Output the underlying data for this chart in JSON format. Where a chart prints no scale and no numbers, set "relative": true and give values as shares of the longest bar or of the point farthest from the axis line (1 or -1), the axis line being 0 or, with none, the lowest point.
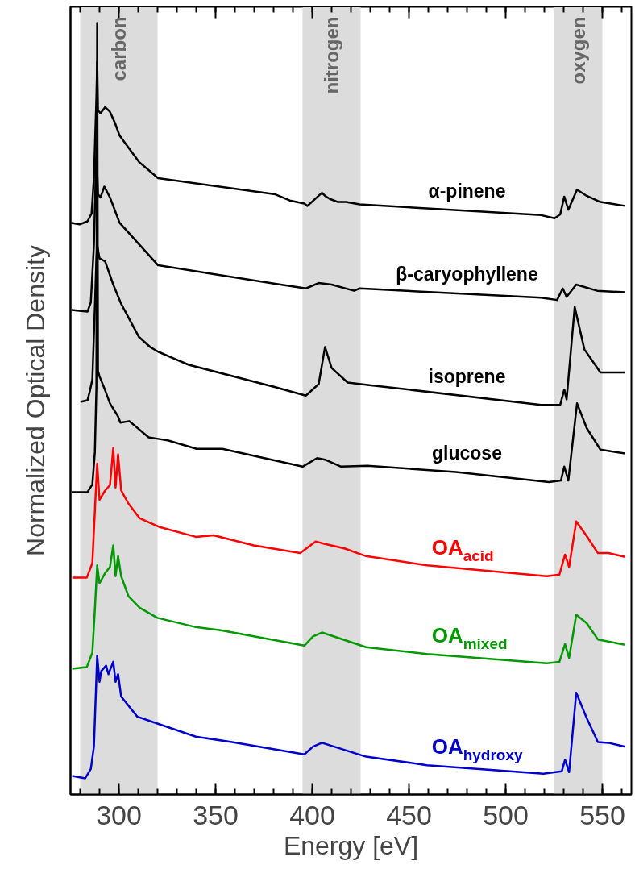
{
  "chart_data": {
    "type": "line",
    "relative": true,
    "xlabel": "Energy [eV]",
    "ylabel": "Normalized Optical Density",
    "xlim": [
      275,
      565
    ],
    "xticks": [
      300,
      350,
      400,
      450,
      500,
      550
    ],
    "grid": false,
    "line_style": "solid",
    "marker": "none",
    "bands": [
      {
        "axis": "x",
        "from": 280,
        "to": 320,
        "label": "carbon",
        "color": "#dcdcdc"
      },
      {
        "axis": "x",
        "from": 395,
        "to": 425,
        "label": "nitrogen",
        "color": "#dcdcdc"
      },
      {
        "axis": "x",
        "from": 525,
        "to": 550,
        "label": "oxygen",
        "color": "#dcdcdc"
      }
    ],
    "series": [
      {
        "name": "α-pinene",
        "color": "#000000",
        "x": [
          275.5,
          279.7,
          283.8,
          285.9,
          287.1,
          288.4,
          288.8,
          289.2,
          290.5,
          292.9,
          295.4,
          297.9,
          300.4,
          310.4,
          320.3,
          380.9,
          388.4,
          395.9,
          397.5,
          405,
          406.6,
          409.1,
          413.3,
          417.4,
          424.5,
          518.3,
          525.3,
          528.2,
          530.3,
          532.4,
          536.9,
          541.9,
          549,
          561.8
        ],
        "values": [
          0.741,
          0.739,
          0.743,
          0.753,
          0.799,
          0.904,
          0.95,
          0.887,
          0.883,
          0.891,
          0.885,
          0.871,
          0.854,
          0.82,
          0.799,
          0.778,
          0.77,
          0.766,
          0.763,
          0.78,
          0.776,
          0.772,
          0.768,
          0.768,
          0.765,
          0.751,
          0.747,
          0.752,
          0.775,
          0.758,
          0.784,
          0.776,
          0.768,
          0.763
        ]
      },
      {
        "name": "β-caryophyllene",
        "color": "#000000",
        "x": [
          275.5,
          283.8,
          285.5,
          287.1,
          288.4,
          289.2,
          290.5,
          292.5,
          295.4,
          300.4,
          320.3,
          380.9,
          396.7,
          403.3,
          410,
          421.6,
          424.5,
          518.3,
          526.6,
          529.5,
          531.5,
          536.5,
          547.3,
          561.8
        ],
        "values": [
          0.628,
          0.626,
          0.638,
          0.712,
          0.837,
          0.778,
          0.774,
          0.788,
          0.774,
          0.741,
          0.686,
          0.662,
          0.656,
          0.663,
          0.661,
          0.653,
          0.656,
          0.644,
          0.641,
          0.656,
          0.645,
          0.661,
          0.653,
          0.651
        ]
      },
      {
        "name": "isoprene",
        "color": "#000000",
        "x": [
          280.1,
          283.8,
          285.1,
          286.3,
          287.6,
          288.4,
          288.8,
          290,
          292.9,
          297.1,
          301.2,
          310.4,
          316.2,
          320.3,
          328.6,
          336.1,
          380.9,
          396.7,
          403.3,
          406.6,
          410,
          418.3,
          428.6,
          518.3,
          528.2,
          530.3,
          531.5,
          535.7,
          540.7,
          549,
          561.8
        ],
        "values": [
          0.509,
          0.511,
          0.524,
          0.538,
          0.632,
          0.695,
          0.712,
          0.695,
          0.691,
          0.661,
          0.636,
          0.593,
          0.58,
          0.574,
          0.565,
          0.557,
          0.528,
          0.517,
          0.532,
          0.58,
          0.553,
          0.534,
          0.531,
          0.505,
          0.505,
          0.525,
          0.512,
          0.632,
          0.577,
          0.547,
          0.547
        ]
      },
      {
        "name": "glucose",
        "color": "#000000",
        "x": [
          275.5,
          283.8,
          286.3,
          287.6,
          288.4,
          288.8,
          289.2,
          290,
          292.9,
          295.4,
          299.6,
          300.8,
          305.4,
          315.4,
          320.3,
          325.3,
          340.2,
          353.5,
          395,
          402.5,
          406.6,
          414.9,
          428.6,
          474.3,
          522.4,
          528.6,
          530.3,
          532.4,
          536.9,
          541.9,
          549,
          561.8
        ],
        "values": [
          0.392,
          0.392,
          0.402,
          0.444,
          0.528,
          1.0,
          0.549,
          0.542,
          0.524,
          0.507,
          0.49,
          0.482,
          0.484,
          0.463,
          0.461,
          0.459,
          0.448,
          0.448,
          0.425,
          0.436,
          0.434,
          0.425,
          0.426,
          0.418,
          0.405,
          0.407,
          0.425,
          0.407,
          0.507,
          0.475,
          0.447,
          0.442
        ]
      },
      {
        "name": "OA$_{acid}$",
        "color": "#ff0000",
        "x": [
          275.9,
          283.4,
          286.3,
          287.6,
          288.8,
          290,
          292.9,
          295.4,
          297.1,
          298.3,
          299.6,
          301.2,
          305,
          310.8,
          320.7,
          339.8,
          349,
          369.7,
          393.8,
          401.7,
          406.2,
          416.6,
          427.8,
          459.3,
          521.2,
          527.8,
          530.7,
          532.8,
          536.5,
          541.9,
          547.7,
          553.1,
          561.8
        ],
        "values": [
          0.281,
          0.281,
          0.3,
          0.368,
          0.429,
          0.382,
          0.394,
          0.401,
          0.449,
          0.398,
          0.441,
          0.394,
          0.377,
          0.358,
          0.347,
          0.334,
          0.336,
          0.323,
          0.313,
          0.328,
          0.325,
          0.319,
          0.309,
          0.297,
          0.283,
          0.285,
          0.311,
          0.295,
          0.354,
          0.335,
          0.313,
          0.313,
          0.308
        ]
      },
      {
        "name": "OA$_{mixed}$",
        "color": "#009900",
        "x": [
          275.9,
          283.4,
          286.3,
          287.6,
          288.8,
          290,
          292.9,
          295.4,
          297.1,
          298.3,
          299.6,
          301.2,
          305,
          310.8,
          319.9,
          339.8,
          352.7,
          369.7,
          395.9,
          400.4,
          405,
          427.8,
          459.3,
          521.2,
          527.8,
          530.7,
          532.8,
          536.5,
          541.9,
          547.7,
          561.8
        ],
        "values": [
          0.163,
          0.165,
          0.184,
          0.24,
          0.297,
          0.274,
          0.287,
          0.295,
          0.323,
          0.283,
          0.309,
          0.283,
          0.257,
          0.242,
          0.229,
          0.217,
          0.213,
          0.205,
          0.193,
          0.205,
          0.21,
          0.191,
          0.182,
          0.17,
          0.172,
          0.195,
          0.177,
          0.233,
          0.222,
          0.201,
          0.194
        ]
      },
      {
        "name": "OA$_{hydroxy}$",
        "color": "#0000cc",
        "x": [
          275.9,
          282.6,
          285.5,
          287.1,
          288.8,
          290,
          290.9,
          293.4,
          294.6,
          297.1,
          298.3,
          299.6,
          301.2,
          309.5,
          319.9,
          339.8,
          358.5,
          395.9,
          400.4,
          405,
          427.8,
          459.3,
          519.5,
          529,
          530.7,
          532.8,
          536.5,
          541.9,
          547.7,
          553.1,
          561.8
        ],
        "values": [
          0.024,
          0.021,
          0.033,
          0.062,
          0.18,
          0.146,
          0.16,
          0.167,
          0.156,
          0.172,
          0.146,
          0.156,
          0.127,
          0.101,
          0.092,
          0.075,
          0.068,
          0.052,
          0.062,
          0.067,
          0.049,
          0.038,
          0.027,
          0.03,
          0.045,
          0.029,
          0.132,
          0.099,
          0.068,
          0.067,
          0.062
        ]
      }
    ]
  }
}
